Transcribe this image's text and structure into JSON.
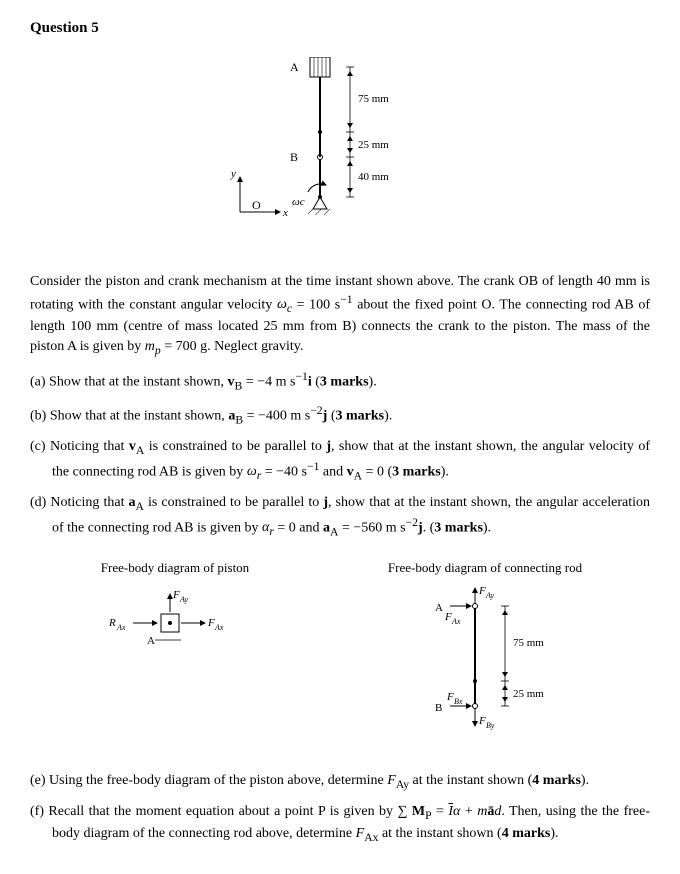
{
  "heading": "Question 5",
  "fig1": {
    "A": "A",
    "B": "B",
    "O": "O",
    "x": "x",
    "y": "y",
    "wc": "ωc",
    "d75": "75 mm",
    "d25": "25 mm",
    "d40": "40 mm"
  },
  "prose_html": "Consider the piston and crank mechanism at the time instant shown above. The crank OB of length 40&nbsp;mm is rotating with the constant angular velocity <i>ω<sub>c</sub></i> = 100&nbsp;s<sup>−1</sup> about the fixed point O. The connecting rod AB of length 100&nbsp;mm (centre of mass located 25&nbsp;mm from B) connects the crank to the piston. The mass of the piston A is given by <i>m<sub>p</sub></i> = 700&nbsp;g. Neglect gravity.",
  "part_a_html": "(a) Show that at the instant shown, <b>v</b><sub>B</sub> = −4&nbsp;m&nbsp;s<sup>−1</sup><b>i</b> (<b>3 marks</b>).",
  "part_b_html": "(b) Show that at the instant shown, <b>a</b><sub>B</sub> = −400&nbsp;m&nbsp;s<sup>−2</sup><b>j</b> (<b>3 marks</b>).",
  "part_c_html": "(c) Noticing that <b>v</b><sub>A</sub> is constrained to be parallel to <b>j</b>, show that at the instant shown, the angular velocity of the connecting rod AB is given by <i>ω<sub>r</sub></i> = −40&nbsp;s<sup>−1</sup> and <b>v</b><sub>A</sub> = 0 (<b>3 marks</b>).",
  "part_d_html": "(d) Noticing that <b>a</b><sub>A</sub> is constrained to be parallel to <b>j</b>, show that at the instant shown, the angular acceleration of the connecting rod AB is given by <i>α<sub>r</sub></i> = 0 and <b>a</b><sub>A</sub> = −560&nbsp;m&nbsp;s<sup>−2</sup><b>j</b>. (<b>3 marks</b>).",
  "fbd_piston_title": "Free-body diagram of piston",
  "fbd_rod_title": "Free-body diagram of connecting rod",
  "fbd_piston": {
    "A": "A",
    "FAy": "FAy",
    "FAx": "FAx",
    "RAx": "RAx"
  },
  "fbd_rod": {
    "A": "A",
    "B": "B",
    "FAy": "FAy",
    "FAx": "FAx",
    "FBx": "FBx",
    "FBy": "FBy",
    "d75": "75 mm",
    "d25": "25 mm"
  },
  "part_e_html": "(e) Using the free-body diagram of the piston above, determine <i>F</i><sub>Ay</sub> at the instant shown (<b>4 marks</b>).",
  "part_f_html": "(f) Recall that the moment equation about a point P is given by ∑&nbsp;<b>M</b><sub>P</sub> = <span style=\"text-decoration:overline\"><i>I</i></span><i>α</i> + <i>m</i><b>ā</b><i>d</i>. Then, using the the free-body diagram of the connecting rod above, determine <i>F</i><sub>Ax</sub> at the instant shown (<b>4 marks</b>).",
  "colors": {
    "text": "#000000",
    "bg": "#ffffff"
  },
  "fontsize_body": 14
}
